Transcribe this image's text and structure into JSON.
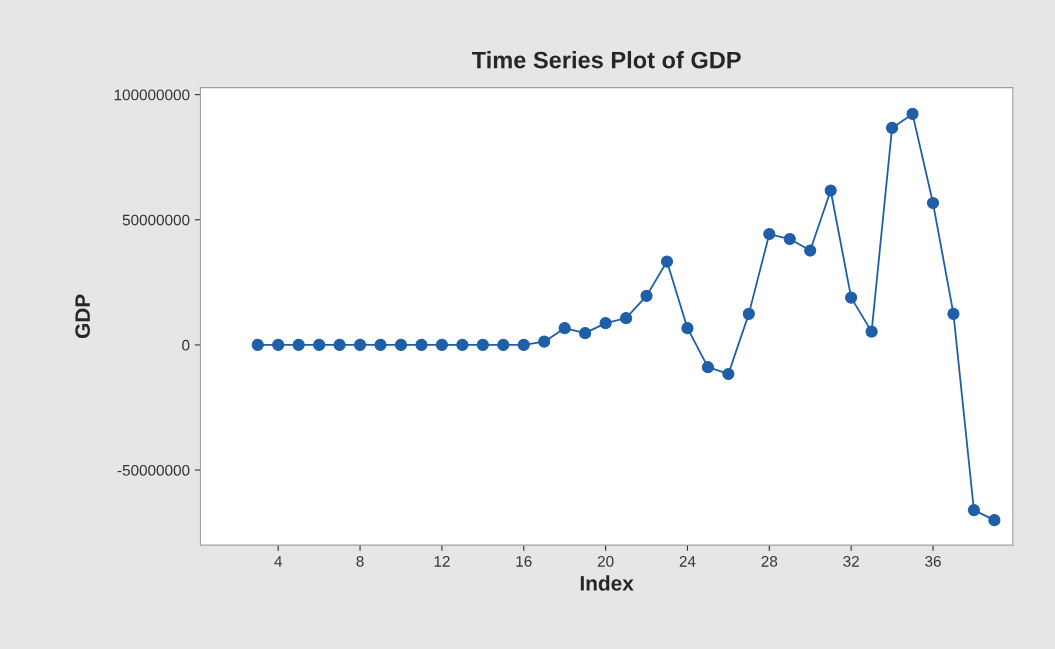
{
  "chart_data": {
    "type": "line",
    "title": "Time Series Plot of GDP",
    "xlabel": "Index",
    "ylabel": "GDP",
    "x": [
      3,
      4,
      5,
      6,
      7,
      8,
      9,
      10,
      11,
      12,
      13,
      14,
      15,
      16,
      17,
      18,
      19,
      20,
      21,
      22,
      23,
      24,
      25,
      26,
      27,
      28,
      29,
      30,
      31,
      32,
      33,
      34,
      35,
      36,
      37,
      38,
      39
    ],
    "series": [
      {
        "color": "#1f5fa8",
        "values": [
          0,
          0,
          0,
          0,
          0,
          0,
          0,
          0,
          0,
          0,
          0,
          0,
          0,
          0,
          1300000,
          6700000,
          4700000,
          8700000,
          10700000,
          19600000,
          33300000,
          6700000,
          -8900000,
          -11600000,
          12400000,
          44300000,
          42300000,
          37700000,
          61700000,
          18900000,
          5300000,
          86700000,
          92300000,
          56700000,
          12400000,
          -66000000,
          -70000000
        ]
      }
    ],
    "xlim": [
      0.2,
      39.9
    ],
    "xticks": [
      4,
      8,
      12,
      16,
      20,
      24,
      28,
      32,
      36
    ],
    "ylim": [
      -80000000,
      102800000
    ],
    "yticks": [
      -50000000,
      0,
      50000000,
      100000000
    ],
    "marker": "circle",
    "line_style": "solid",
    "grid": false
  }
}
